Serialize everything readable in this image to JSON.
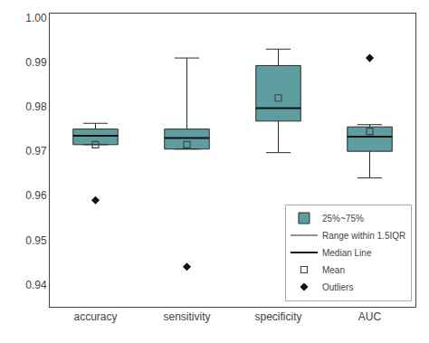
{
  "chart_data": {
    "type": "box",
    "categories": [
      "accuracy",
      "sensitivity",
      "specificity",
      "AUC"
    ],
    "series": [
      {
        "name": "25%~75%",
        "color": "#5f9ea0",
        "q1": [
          0.9715,
          0.9705,
          0.9768,
          0.97
        ],
        "q3": [
          0.975,
          0.975,
          0.9893,
          0.9755
        ]
      },
      {
        "name": "Range within 1.5IQR",
        "color": "#2a2a2a",
        "whisker_low": [
          0.9715,
          0.9705,
          0.9697,
          0.964
        ],
        "whisker_high": [
          0.9763,
          0.991,
          0.993,
          0.976
        ]
      },
      {
        "name": "Median Line",
        "color": "#111111",
        "values": [
          0.9735,
          0.973,
          0.9797,
          0.9733
        ]
      },
      {
        "name": "Mean",
        "color": "#444444",
        "marker": "square-open",
        "values": [
          0.9715,
          0.9715,
          0.982,
          0.9745
        ]
      },
      {
        "name": "Outliers",
        "color": "#111111",
        "marker": "diamond",
        "values": [
          [
            0.959
          ],
          [
            0.944
          ],
          [],
          [
            0.991
          ]
        ]
      }
    ],
    "ylim": [
      0.935,
      1.001
    ],
    "yticks": [
      0.94,
      0.95,
      0.96,
      0.97,
      0.98,
      0.99,
      {
        "value": 1.0,
        "label": "1.00"
      }
    ],
    "grid": false,
    "legend": "lower right"
  }
}
